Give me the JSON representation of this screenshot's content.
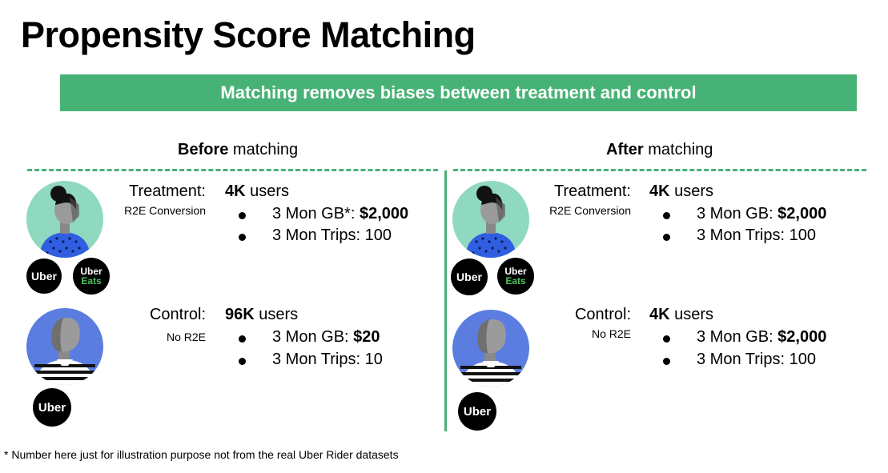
{
  "title": "Propensity Score Matching",
  "banner": "Matching removes biases between treatment and control",
  "before": {
    "heading_bold": "Before",
    "heading_rest": "matching",
    "treatment": {
      "label": "Treatment:",
      "sublabel": "R2E Conversion",
      "users_count": "4K",
      "users_word": "users",
      "gb_label": "3 Mon GB*:",
      "gb_value": "$2,000",
      "trips_label": "3 Mon Trips: 100",
      "logos": [
        "Uber",
        "Uber Eats"
      ]
    },
    "control": {
      "label": "Control:",
      "sublabel": "No R2E",
      "users_count": "96K",
      "users_word": "users",
      "gb_label": "3 Mon GB:",
      "gb_value": "$20",
      "trips_label": "3 Mon Trips: 10",
      "logos": [
        "Uber"
      ]
    }
  },
  "after": {
    "heading_bold": "After",
    "heading_rest": "matching",
    "treatment": {
      "label": "Treatment:",
      "sublabel": "R2E Conversion",
      "users_count": "4K",
      "users_word": "users",
      "gb_label": "3 Mon GB:",
      "gb_value": "$2,000",
      "trips_label": "3 Mon Trips: 100",
      "logos": [
        "Uber",
        "Uber Eats"
      ]
    },
    "control": {
      "label": "Control:",
      "sublabel": "No R2E",
      "users_count": "4K",
      "users_word": "users",
      "gb_label": "3 Mon GB:",
      "gb_value": "$2,000",
      "trips_label": "3 Mon Trips: 100",
      "logos": [
        "Uber"
      ]
    }
  },
  "logo_text": {
    "uber": "Uber",
    "eats_top": "Uber",
    "eats_bottom": "Eats"
  },
  "footnote": "* Number here just for illustration purpose not from the real Uber Rider datasets",
  "colors": {
    "accent": "#47b275",
    "treatment_bg": "#8fd9c0",
    "control_bg": "#5b7de0",
    "eats": "#4cc25b"
  },
  "icons": [
    "treatment-person-icon",
    "control-person-icon",
    "uber-logo-icon",
    "uber-eats-logo-icon"
  ]
}
